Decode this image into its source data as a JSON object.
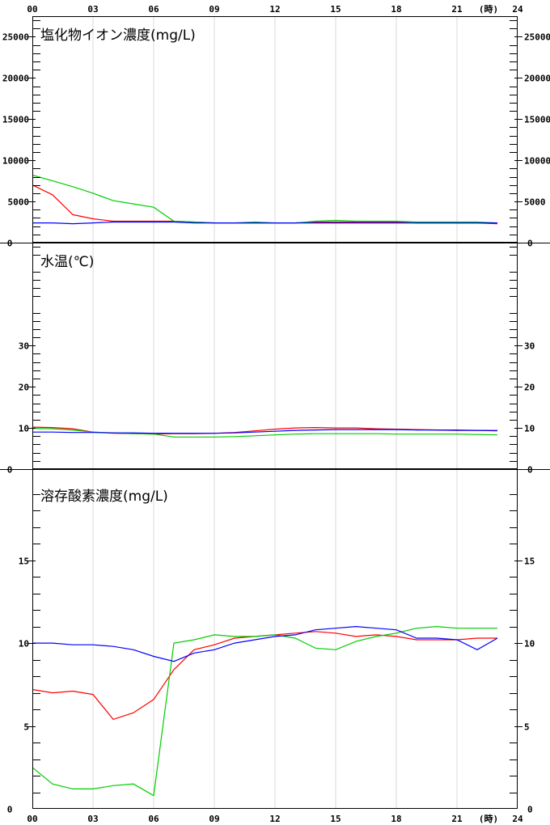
{
  "x_ticks": [
    "00",
    "03",
    "06",
    "09",
    "12",
    "15",
    "18",
    "21",
    "24"
  ],
  "x_unit": "(時)",
  "chart_data": [
    {
      "type": "line",
      "title": "塩化物イオン濃度(mg/L)",
      "xlim": [
        0,
        24
      ],
      "ylim": [
        0,
        27500
      ],
      "yticks": [
        0,
        5000,
        10000,
        15000,
        20000,
        25000
      ],
      "x": [
        0,
        1,
        2,
        3,
        4,
        5,
        6,
        7,
        8,
        9,
        10,
        11,
        12,
        13,
        14,
        15,
        16,
        17,
        18,
        19,
        20,
        21,
        22,
        23
      ],
      "series": [
        {
          "color": "#ff0000",
          "values": [
            7000,
            5800,
            3400,
            2900,
            2600,
            2600,
            2600,
            2600,
            2500,
            2400,
            2400,
            2400,
            2400,
            2400,
            2500,
            2500,
            2500,
            2500,
            2500,
            2400,
            2400,
            2400,
            2400,
            2300
          ]
        },
        {
          "color": "#00cc00",
          "values": [
            8200,
            7500,
            6800,
            6000,
            5100,
            4700,
            4300,
            2600,
            2500,
            2400,
            2400,
            2500,
            2400,
            2400,
            2600,
            2700,
            2600,
            2600,
            2600,
            2500,
            2500,
            2500,
            2500,
            2400
          ]
        },
        {
          "color": "#0000ff",
          "values": [
            2400,
            2400,
            2300,
            2400,
            2500,
            2500,
            2500,
            2500,
            2400,
            2400,
            2400,
            2400,
            2400,
            2400,
            2400,
            2400,
            2400,
            2400,
            2400,
            2400,
            2400,
            2400,
            2400,
            2400
          ]
        }
      ]
    },
    {
      "type": "line",
      "title": "水温(℃)",
      "xlim": [
        0,
        24
      ],
      "ylim": [
        0,
        55
      ],
      "yticks": [
        0,
        10,
        20,
        30
      ],
      "x": [
        0,
        1,
        2,
        3,
        4,
        5,
        6,
        7,
        8,
        9,
        10,
        11,
        12,
        13,
        14,
        15,
        16,
        17,
        18,
        19,
        20,
        21,
        22,
        23
      ],
      "series": [
        {
          "color": "#ff0000",
          "values": [
            10.2,
            10.1,
            9.8,
            9.0,
            8.7,
            8.6,
            8.5,
            8.6,
            8.6,
            8.7,
            8.9,
            9.3,
            9.7,
            10.0,
            10.1,
            10.0,
            10.0,
            9.8,
            9.7,
            9.6,
            9.5,
            9.5,
            9.4,
            9.4
          ]
        },
        {
          "color": "#00cc00",
          "values": [
            9.9,
            9.8,
            9.5,
            9.0,
            8.8,
            8.6,
            8.5,
            7.8,
            7.8,
            7.8,
            7.9,
            8.1,
            8.3,
            8.5,
            8.6,
            8.6,
            8.6,
            8.6,
            8.5,
            8.5,
            8.5,
            8.5,
            8.4,
            8.3
          ]
        },
        {
          "color": "#0000ff",
          "values": [
            9.0,
            9.0,
            8.9,
            8.9,
            8.8,
            8.8,
            8.7,
            8.7,
            8.7,
            8.7,
            8.8,
            9.0,
            9.2,
            9.4,
            9.5,
            9.6,
            9.6,
            9.6,
            9.6,
            9.5,
            9.5,
            9.4,
            9.4,
            9.3
          ]
        }
      ]
    },
    {
      "type": "line",
      "title": "溶存酸素濃度(mg/L)",
      "xlim": [
        0,
        24
      ],
      "ylim": [
        0,
        20.5
      ],
      "yticks": [
        0,
        5,
        10,
        15
      ],
      "x": [
        0,
        1,
        2,
        3,
        4,
        5,
        6,
        7,
        8,
        9,
        10,
        11,
        12,
        13,
        14,
        15,
        16,
        17,
        18,
        19,
        20,
        21,
        22,
        23
      ],
      "series": [
        {
          "color": "#ff0000",
          "values": [
            7.2,
            7.0,
            7.1,
            6.9,
            5.4,
            5.8,
            6.6,
            8.4,
            9.6,
            9.9,
            10.3,
            10.4,
            10.5,
            10.6,
            10.7,
            10.6,
            10.4,
            10.5,
            10.4,
            10.2,
            10.2,
            10.2,
            10.3,
            10.3
          ]
        },
        {
          "color": "#00cc00",
          "values": [
            2.5,
            1.5,
            1.2,
            1.2,
            1.4,
            1.5,
            0.8,
            10.0,
            10.2,
            10.5,
            10.4,
            10.4,
            10.5,
            10.3,
            9.7,
            9.6,
            10.1,
            10.4,
            10.6,
            10.9,
            11.0,
            10.9,
            10.9,
            10.9
          ]
        },
        {
          "color": "#0000ff",
          "values": [
            10.0,
            10.0,
            9.9,
            9.9,
            9.8,
            9.6,
            9.2,
            8.9,
            9.4,
            9.6,
            10.0,
            10.2,
            10.4,
            10.5,
            10.8,
            10.9,
            11.0,
            10.9,
            10.8,
            10.3,
            10.3,
            10.2,
            9.6,
            10.3
          ]
        }
      ]
    }
  ]
}
